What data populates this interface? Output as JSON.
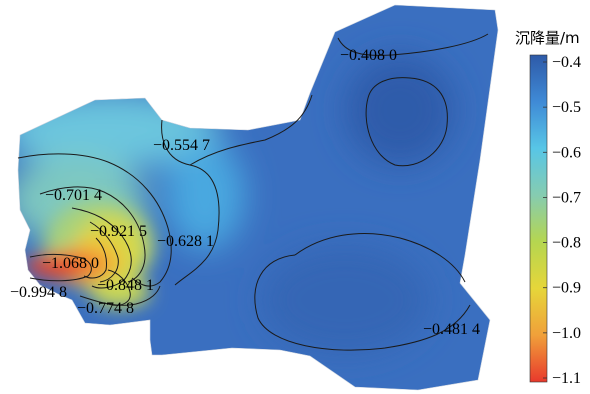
{
  "chart_data": {
    "type": "heatmap",
    "title": "",
    "xlabel": "",
    "ylabel": "",
    "colorbar": {
      "title": "沉降量/m",
      "range": [
        -1.1,
        -0.4
      ],
      "ticks": [
        -0.4,
        -0.5,
        -0.6,
        -0.7,
        -0.8,
        -0.9,
        -1.0,
        -1.1
      ],
      "tick_labels": [
        "−0.4",
        "−0.5",
        "−0.6",
        "−0.7",
        "−0.8",
        "−0.9",
        "−1.0",
        "−1.1"
      ],
      "colors_top_to_bottom": [
        "#2e5aa8",
        "#3f8ad6",
        "#58c6e6",
        "#86ccb0",
        "#b5d650",
        "#e6d63a",
        "#f0a03a",
        "#e8392c"
      ]
    },
    "contour_labels": [
      {
        "value": -0.408,
        "text": "−0.408 0"
      },
      {
        "value": -0.5547,
        "text": "−0.554 7"
      },
      {
        "value": -0.7014,
        "text": "−0.701 4"
      },
      {
        "value": -0.9215,
        "text": "−0.921 5"
      },
      {
        "value": -0.6281,
        "text": "−0.628 1"
      },
      {
        "value": -1.068,
        "text": "−1.068 0"
      },
      {
        "value": -0.9948,
        "text": "−0.994 8"
      },
      {
        "value": -0.8481,
        "text": "−0.848 1"
      },
      {
        "value": -0.7748,
        "text": "−0.774 8"
      },
      {
        "value": -0.4814,
        "text": "−0.481 4"
      }
    ]
  }
}
